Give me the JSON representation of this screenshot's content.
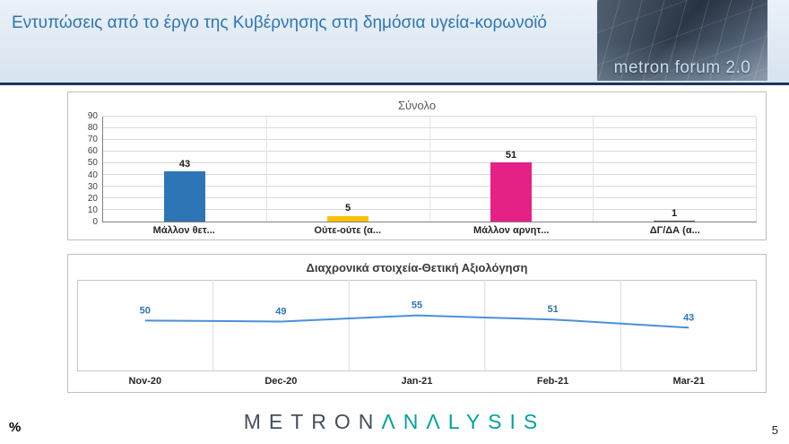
{
  "header": {
    "title": "Εντυπώσεις από το έργο της Κυβέρνησης στη δημόσια υγεία-κορωνοϊό",
    "logo_text": "metron forum 2.0"
  },
  "chart_data": [
    {
      "type": "bar",
      "title": "Σύνολο",
      "categories": [
        "Μάλλον θετ...",
        "Ούτε-ούτε (α...",
        "Μάλλον αρνητ...",
        "ΔΓ/ΔΑ (α..."
      ],
      "values": [
        43,
        5,
        51,
        1
      ],
      "bar_colors": [
        "#2e75b6",
        "#ffc000",
        "#e62185",
        "#595959"
      ],
      "ylim": [
        0,
        90
      ],
      "yticks": [
        0,
        10,
        20,
        30,
        40,
        50,
        60,
        70,
        80,
        90
      ],
      "grid": true,
      "legend": "none"
    },
    {
      "type": "line",
      "title": "Διαχρονικά στοιχεία-Θετική Αξιολόγηση",
      "categories": [
        "Nov-20",
        "Dec-20",
        "Jan-21",
        "Feb-21",
        "Mar-21"
      ],
      "values": [
        50,
        49,
        55,
        51,
        43
      ],
      "line_color": "#4a90d9",
      "label_color": "#2e75b6",
      "ylim": [
        0,
        90
      ],
      "grid": true,
      "legend": "none"
    }
  ],
  "footer": {
    "percent_label": "%",
    "logo_metron": "METRON",
    "logo_analysis": "ΛNΛLYSIS",
    "page_number": "5"
  }
}
